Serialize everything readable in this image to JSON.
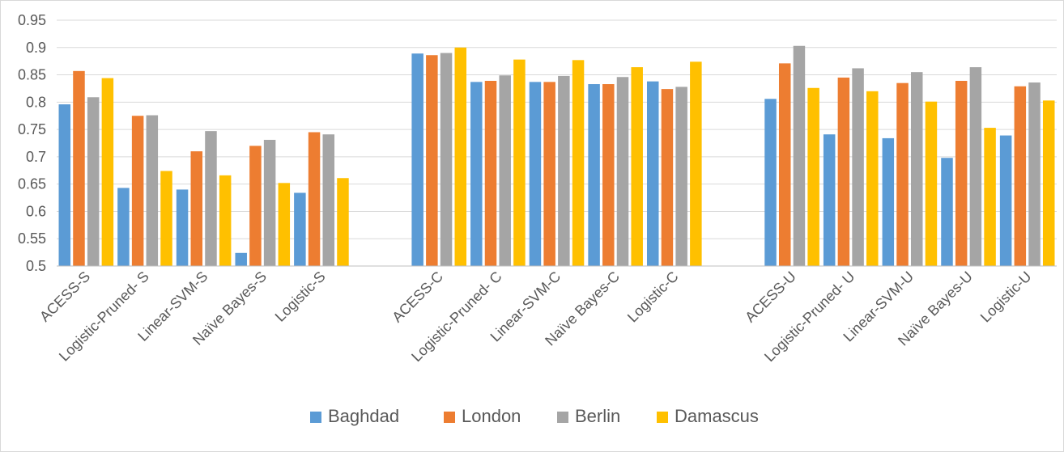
{
  "chart_data": {
    "type": "bar",
    "title": "",
    "xlabel": "",
    "ylabel": "",
    "ylim": [
      0.5,
      0.95
    ],
    "yticks": [
      0.5,
      0.55,
      0.6,
      0.65,
      0.7,
      0.75,
      0.8,
      0.85,
      0.9,
      0.95
    ],
    "ytick_labels": [
      "0.5",
      "0.55",
      "0.6",
      "0.65",
      "0.7",
      "0.75",
      "0.8",
      "0.85",
      "0.9",
      "0.95"
    ],
    "grid": true,
    "legend_position": "bottom",
    "categories": [
      "ACESS-S",
      "Logistic-Pruned- S",
      "Linear-SVM-S",
      "Naïve Bayes-S",
      "Logistic-S",
      "",
      "ACESS-C",
      "Logistic-Pruned- C",
      "Linear-SVM-C",
      "Naïve Bayes-C",
      "Logistic-C",
      "",
      "ACESS-U",
      "Logistic-Pruned- U",
      "Linear-SVM-U",
      "Naïve Bayes-U",
      "Logistic-U"
    ],
    "series": [
      {
        "name": "Baghdad",
        "color": "#5b9bd5",
        "values": [
          0.796,
          0.643,
          0.64,
          0.524,
          0.634,
          null,
          0.889,
          0.837,
          0.837,
          0.833,
          0.838,
          null,
          0.806,
          0.741,
          0.734,
          0.698,
          0.739
        ]
      },
      {
        "name": "London",
        "color": "#ed7d31",
        "values": [
          0.857,
          0.775,
          0.71,
          0.72,
          0.745,
          null,
          0.886,
          0.839,
          0.837,
          0.833,
          0.824,
          null,
          0.871,
          0.845,
          0.835,
          0.839,
          0.829
        ]
      },
      {
        "name": "Berlin",
        "color": "#a5a5a5",
        "values": [
          0.809,
          0.776,
          0.747,
          0.731,
          0.741,
          null,
          0.89,
          0.849,
          0.848,
          0.846,
          0.828,
          null,
          0.903,
          0.862,
          0.855,
          0.864,
          0.836
        ]
      },
      {
        "name": "Damascus",
        "color": "#ffc000",
        "values": [
          0.844,
          0.674,
          0.666,
          0.652,
          0.661,
          null,
          0.9,
          0.878,
          0.877,
          0.864,
          0.874,
          null,
          0.826,
          0.82,
          0.801,
          0.753,
          0.803
        ]
      }
    ]
  }
}
